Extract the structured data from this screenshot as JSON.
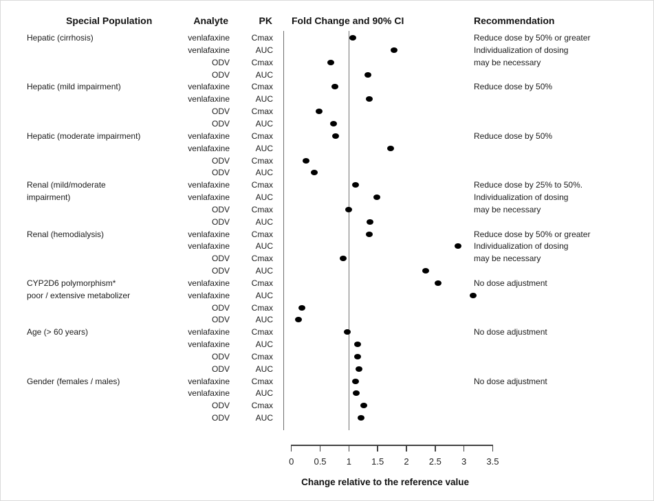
{
  "headers": {
    "special_population": "Special Population",
    "analyte": "Analyte",
    "pk": "PK",
    "fold_change": "Fold Change and 90% CI",
    "recommendation": "Recommendation"
  },
  "chart_data": {
    "type": "scatter",
    "title": "Fold Change and 90% CI",
    "xlabel": "Change relative to the reference value",
    "xlim": [
      0,
      3.5
    ],
    "x_ticks": [
      0,
      0.5,
      1,
      1.5,
      2,
      2.5,
      3,
      3.5
    ],
    "x_tick_labels": [
      "0",
      "0.5",
      "1",
      "1.5",
      "2",
      "2.5",
      "3",
      "3.5"
    ],
    "reference_line_x": 1,
    "grid": false,
    "dot_color": "#000000",
    "panel_line_color": "#6e6e6e",
    "groups": [
      {
        "population_lines": [
          "Hepatic (cirrhosis)"
        ],
        "recommendation_lines": [
          "Reduce dose by 50% or greater",
          "Individualization of dosing",
          "may be necessary"
        ],
        "rows": [
          {
            "analyte": "venlafaxine",
            "pk": "Cmax",
            "fold_change": 1.07
          },
          {
            "analyte": "venlafaxine",
            "pk": "AUC",
            "fold_change": 1.78
          },
          {
            "analyte": "ODV",
            "pk": "Cmax",
            "fold_change": 0.68
          },
          {
            "analyte": "ODV",
            "pk": "AUC",
            "fold_change": 1.33
          }
        ]
      },
      {
        "population_lines": [
          "Hepatic (mild impairment)"
        ],
        "recommendation_lines": [
          "Reduce dose by 50%"
        ],
        "rows": [
          {
            "analyte": "venlafaxine",
            "pk": "Cmax",
            "fold_change": 0.76
          },
          {
            "analyte": "venlafaxine",
            "pk": "AUC",
            "fold_change": 1.36
          },
          {
            "analyte": "ODV",
            "pk": "Cmax",
            "fold_change": 0.48
          },
          {
            "analyte": "ODV",
            "pk": "AUC",
            "fold_change": 0.73
          }
        ]
      },
      {
        "population_lines": [
          "Hepatic (moderate impairment)"
        ],
        "recommendation_lines": [
          "Reduce dose by 50%"
        ],
        "rows": [
          {
            "analyte": "venlafaxine",
            "pk": "Cmax",
            "fold_change": 0.77
          },
          {
            "analyte": "venlafaxine",
            "pk": "AUC",
            "fold_change": 1.72
          },
          {
            "analyte": "ODV",
            "pk": "Cmax",
            "fold_change": 0.26
          },
          {
            "analyte": "ODV",
            "pk": "AUC",
            "fold_change": 0.4
          }
        ]
      },
      {
        "population_lines": [
          "Renal (mild/moderate",
          "impairment)"
        ],
        "recommendation_lines": [
          "Reduce dose by 25% to 50%.",
          "Individualization of dosing",
          "may be necessary"
        ],
        "rows": [
          {
            "analyte": "venlafaxine",
            "pk": "Cmax",
            "fold_change": 1.11
          },
          {
            "analyte": "venlafaxine",
            "pk": "AUC",
            "fold_change": 1.49
          },
          {
            "analyte": "ODV",
            "pk": "Cmax",
            "fold_change": 0.99
          },
          {
            "analyte": "ODV",
            "pk": "AUC",
            "fold_change": 1.37
          }
        ]
      },
      {
        "population_lines": [
          "Renal (hemodialysis)"
        ],
        "recommendation_lines": [
          "Reduce dose by 50% or greater",
          "Individualization of dosing",
          "may be necessary"
        ],
        "rows": [
          {
            "analyte": "venlafaxine",
            "pk": "Cmax",
            "fold_change": 1.36
          },
          {
            "analyte": "venlafaxine",
            "pk": "AUC",
            "fold_change": 2.9
          },
          {
            "analyte": "ODV",
            "pk": "Cmax",
            "fold_change": 0.9
          },
          {
            "analyte": "ODV",
            "pk": "AUC",
            "fold_change": 2.34
          }
        ]
      },
      {
        "population_lines": [
          "CYP2D6 polymorphism*",
          "poor / extensive metabolizer"
        ],
        "recommendation_lines": [
          "No dose adjustment"
        ],
        "rows": [
          {
            "analyte": "venlafaxine",
            "pk": "Cmax",
            "fold_change": 2.55
          },
          {
            "analyte": "venlafaxine",
            "pk": "AUC",
            "fold_change": 3.16
          },
          {
            "analyte": "ODV",
            "pk": "Cmax",
            "fold_change": 0.18
          },
          {
            "analyte": "ODV",
            "pk": "AUC",
            "fold_change": 0.12
          }
        ]
      },
      {
        "population_lines": [
          "Age (> 60 years)"
        ],
        "recommendation_lines": [
          "No dose adjustment"
        ],
        "rows": [
          {
            "analyte": "venlafaxine",
            "pk": "Cmax",
            "fold_change": 0.97
          },
          {
            "analyte": "venlafaxine",
            "pk": "AUC",
            "fold_change": 1.15
          },
          {
            "analyte": "ODV",
            "pk": "Cmax",
            "fold_change": 1.15
          },
          {
            "analyte": "ODV",
            "pk": "AUC",
            "fold_change": 1.17
          }
        ]
      },
      {
        "population_lines": [
          "Gender (females / males)"
        ],
        "recommendation_lines": [
          "No dose adjustment"
        ],
        "rows": [
          {
            "analyte": "venlafaxine",
            "pk": "Cmax",
            "fold_change": 1.11
          },
          {
            "analyte": "venlafaxine",
            "pk": "AUC",
            "fold_change": 1.13
          },
          {
            "analyte": "ODV",
            "pk": "Cmax",
            "fold_change": 1.26
          },
          {
            "analyte": "ODV",
            "pk": "AUC",
            "fold_change": 1.21
          }
        ]
      }
    ]
  }
}
